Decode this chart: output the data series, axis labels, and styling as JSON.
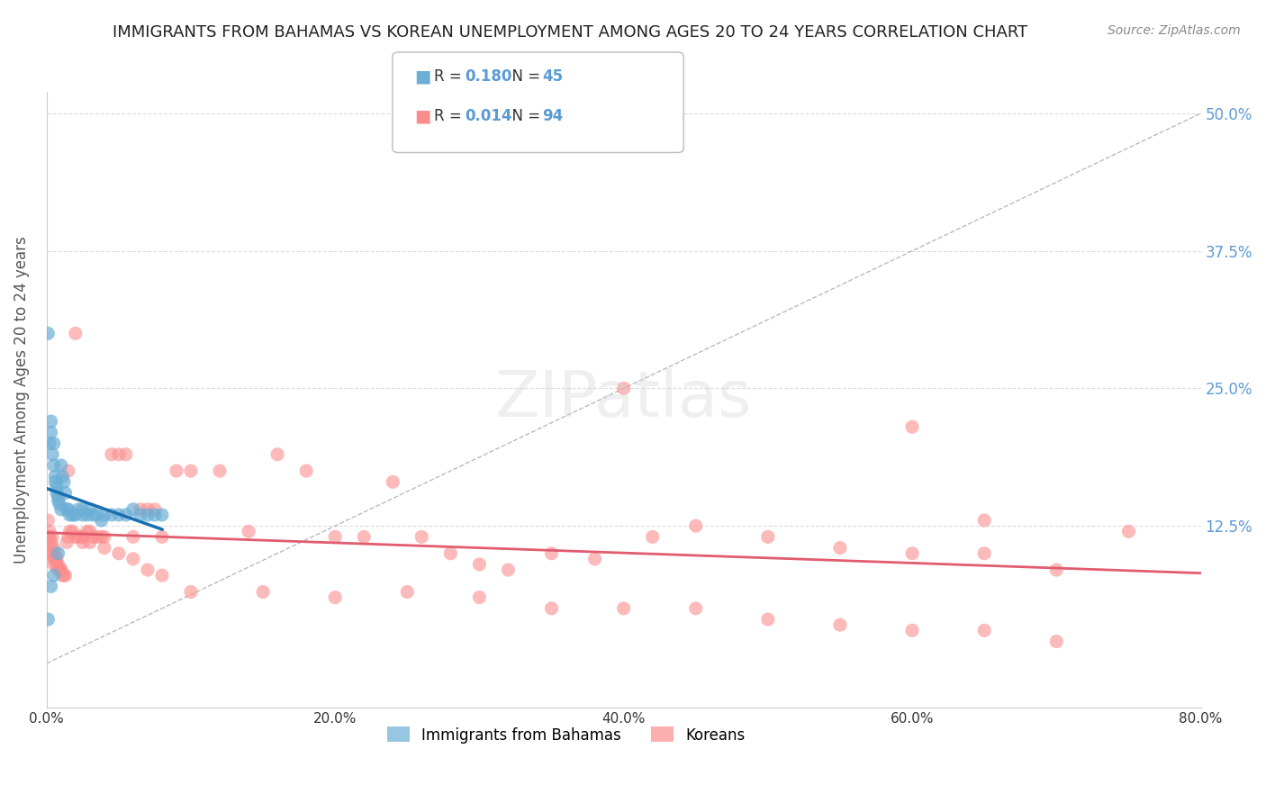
{
  "title": "IMMIGRANTS FROM BAHAMAS VS KOREAN UNEMPLOYMENT AMONG AGES 20 TO 24 YEARS CORRELATION CHART",
  "source": "Source: ZipAtlas.com",
  "xlabel": "",
  "ylabel": "Unemployment Among Ages 20 to 24 years",
  "x_ticks": [
    0.0,
    0.1,
    0.2,
    0.3,
    0.4,
    0.5,
    0.6,
    0.7,
    0.8
  ],
  "x_tick_labels": [
    "0.0%",
    "",
    "20.0%",
    "",
    "40.0%",
    "",
    "60.0%",
    "",
    "80.0%"
  ],
  "y_ticks": [
    0.0,
    0.125,
    0.25,
    0.375,
    0.5
  ],
  "y_tick_labels": [
    "",
    "12.5%",
    "25.0%",
    "37.5%",
    "50.0%"
  ],
  "xlim": [
    0.0,
    0.8
  ],
  "ylim": [
    -0.04,
    0.52
  ],
  "legend_r1": "R = 0.180",
  "legend_n1": "N = 45",
  "legend_r2": "R = 0.014",
  "legend_n2": "N = 94",
  "color_blue": "#6baed6",
  "color_pink": "#fc8d8d",
  "color_trend_blue": "#1a6faf",
  "color_trend_pink": "#e05c6e",
  "color_diag": "#aaaaaa",
  "color_ytick": "#5b9bd5",
  "watermark": "ZIPatlas",
  "blue_scatter_x": [
    0.001,
    0.002,
    0.003,
    0.003,
    0.004,
    0.005,
    0.005,
    0.006,
    0.006,
    0.007,
    0.007,
    0.008,
    0.008,
    0.009,
    0.01,
    0.01,
    0.011,
    0.012,
    0.013,
    0.014,
    0.015,
    0.016,
    0.018,
    0.02,
    0.022,
    0.025,
    0.025,
    0.028,
    0.03,
    0.032,
    0.035,
    0.038,
    0.04,
    0.045,
    0.05,
    0.055,
    0.06,
    0.065,
    0.07,
    0.075,
    0.08,
    0.001,
    0.003,
    0.005,
    0.008
  ],
  "blue_scatter_y": [
    0.3,
    0.2,
    0.22,
    0.21,
    0.19,
    0.18,
    0.2,
    0.165,
    0.17,
    0.16,
    0.155,
    0.152,
    0.148,
    0.145,
    0.14,
    0.18,
    0.17,
    0.165,
    0.155,
    0.14,
    0.14,
    0.135,
    0.135,
    0.135,
    0.14,
    0.135,
    0.14,
    0.135,
    0.14,
    0.135,
    0.135,
    0.13,
    0.135,
    0.135,
    0.135,
    0.135,
    0.14,
    0.135,
    0.135,
    0.135,
    0.135,
    0.04,
    0.07,
    0.08,
    0.1
  ],
  "pink_scatter_x": [
    0.001,
    0.002,
    0.002,
    0.003,
    0.003,
    0.004,
    0.004,
    0.005,
    0.005,
    0.006,
    0.006,
    0.007,
    0.007,
    0.008,
    0.008,
    0.009,
    0.01,
    0.011,
    0.012,
    0.013,
    0.014,
    0.015,
    0.016,
    0.018,
    0.02,
    0.022,
    0.025,
    0.025,
    0.028,
    0.03,
    0.032,
    0.035,
    0.038,
    0.04,
    0.045,
    0.05,
    0.055,
    0.06,
    0.065,
    0.07,
    0.075,
    0.08,
    0.09,
    0.1,
    0.12,
    0.14,
    0.16,
    0.18,
    0.2,
    0.22,
    0.24,
    0.26,
    0.28,
    0.3,
    0.32,
    0.35,
    0.38,
    0.4,
    0.42,
    0.45,
    0.5,
    0.55,
    0.6,
    0.65,
    0.7,
    0.001,
    0.003,
    0.005,
    0.01,
    0.015,
    0.02,
    0.025,
    0.03,
    0.04,
    0.05,
    0.06,
    0.07,
    0.08,
    0.1,
    0.15,
    0.2,
    0.25,
    0.3,
    0.35,
    0.4,
    0.45,
    0.5,
    0.55,
    0.6,
    0.65,
    0.7,
    0.75,
    0.6,
    0.65
  ],
  "pink_scatter_y": [
    0.13,
    0.12,
    0.115,
    0.11,
    0.105,
    0.1,
    0.115,
    0.095,
    0.105,
    0.1,
    0.095,
    0.09,
    0.095,
    0.09,
    0.085,
    0.085,
    0.085,
    0.08,
    0.08,
    0.08,
    0.11,
    0.115,
    0.12,
    0.12,
    0.115,
    0.115,
    0.115,
    0.11,
    0.12,
    0.12,
    0.115,
    0.115,
    0.115,
    0.115,
    0.19,
    0.19,
    0.19,
    0.115,
    0.14,
    0.14,
    0.14,
    0.115,
    0.175,
    0.175,
    0.175,
    0.12,
    0.19,
    0.175,
    0.115,
    0.115,
    0.165,
    0.115,
    0.1,
    0.09,
    0.085,
    0.1,
    0.095,
    0.25,
    0.115,
    0.125,
    0.115,
    0.105,
    0.1,
    0.1,
    0.085,
    0.115,
    0.1,
    0.09,
    0.085,
    0.175,
    0.3,
    0.115,
    0.11,
    0.105,
    0.1,
    0.095,
    0.085,
    0.08,
    0.065,
    0.065,
    0.06,
    0.065,
    0.06,
    0.05,
    0.05,
    0.05,
    0.04,
    0.035,
    0.03,
    0.03,
    0.02,
    0.12,
    0.215,
    0.13
  ]
}
